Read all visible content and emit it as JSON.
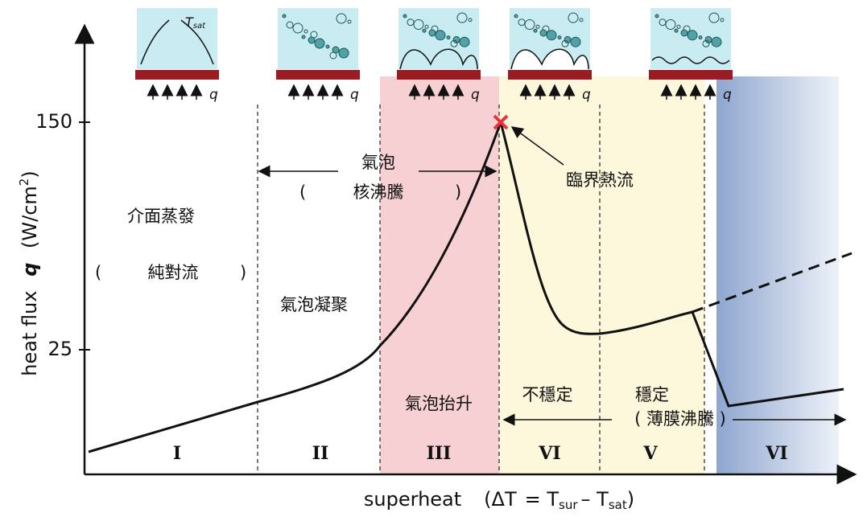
{
  "axes": {
    "y_label": {
      "text": "heat flux",
      "symbol": "q",
      "unit_open": "(W/cm",
      "unit_sup": "2",
      "unit_close": ")"
    },
    "x_label": {
      "text": "superheat",
      "open": "(ΔT",
      "eq": "= T",
      "sub1": "sur",
      "minus": "– T",
      "sub2": "sat",
      "close": ")"
    },
    "y_ticks": [
      "150",
      "25"
    ]
  },
  "icons": [
    {
      "label": "q",
      "t": "T",
      "t_sub": "sat"
    },
    {
      "label": "q"
    },
    {
      "label": "q"
    },
    {
      "label": "q"
    },
    {
      "label": "q"
    }
  ],
  "regions": [
    "I",
    "II",
    "III",
    "VI",
    "V",
    "VI"
  ],
  "annotations": {
    "interface": "介面蒸發",
    "conv_open": "(",
    "conv": "純對流",
    "conv_close": ")",
    "bubble": "氣泡",
    "nb_open": "(",
    "nucleate": "核沸騰",
    "nb_close": ")",
    "coalesce": "氣泡凝聚",
    "chf": "臨界熱流",
    "lift": "氣泡抬升",
    "unstable": "不穩定",
    "stable": "穩定",
    "film": "( 薄膜沸騰 )"
  }
}
